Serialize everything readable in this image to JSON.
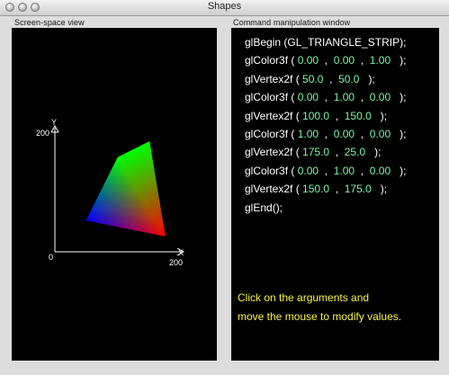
{
  "window": {
    "title": "Shapes"
  },
  "screen_view": {
    "label": "Screen-space view",
    "axis": {
      "y_max": "200",
      "x_max": "200",
      "origin": "0",
      "x_name": "X",
      "y_name": "Y"
    }
  },
  "command_window": {
    "label": "Command manipulation window",
    "begin": "glBegin (GL_TRIANGLE_STRIP);",
    "end": "glEnd();",
    "commands": [
      {
        "fn": "glColor3f",
        "args": [
          "0.00",
          "0.00",
          "1.00"
        ]
      },
      {
        "fn": "glVertex2f",
        "args": [
          "50.0",
          "50.0"
        ]
      },
      {
        "fn": "glColor3f",
        "args": [
          "0.00",
          "1.00",
          "0.00"
        ]
      },
      {
        "fn": "glVertex2f",
        "args": [
          "100.0",
          "150.0"
        ]
      },
      {
        "fn": "glColor3f",
        "args": [
          "1.00",
          "0.00",
          "0.00"
        ]
      },
      {
        "fn": "glVertex2f",
        "args": [
          "175.0",
          "25.0"
        ]
      },
      {
        "fn": "glColor3f",
        "args": [
          "0.00",
          "1.00",
          "0.00"
        ]
      },
      {
        "fn": "glVertex2f",
        "args": [
          "150.0",
          "175.0"
        ]
      }
    ],
    "hint_line1": "Click on the arguments and",
    "hint_line2": "move the mouse to modify values."
  }
}
